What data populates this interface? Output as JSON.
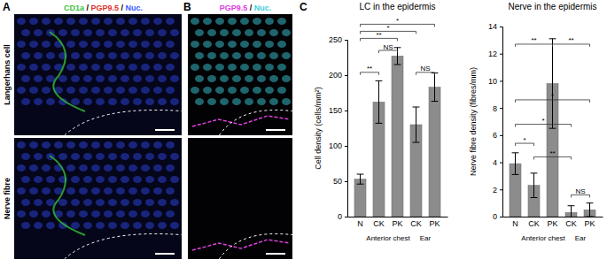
{
  "panels": [
    {
      "label": "A",
      "stains": [
        {
          "text": "CD1a",
          "color": "#3ec23e"
        },
        {
          "text": "PGP9.5",
          "color": "#e0302a"
        },
        {
          "text": "Nuc.",
          "color": "#3b5bff"
        }
      ],
      "separator": " / ",
      "rows": [
        "Langerhans cell",
        "Nerve fibre"
      ]
    },
    {
      "label": "B",
      "stains": [
        {
          "text": "PGP9.5",
          "color": "#e040e0"
        },
        {
          "text": "Nuc.",
          "color": "#3fd0d8"
        }
      ],
      "separator": " / "
    }
  ],
  "chart_label": "C",
  "chart_data": [
    {
      "type": "bar",
      "title": "LC in the epidermis",
      "y_label": "Cell density (cells/mm²)",
      "categories": [
        "N",
        "CK",
        "PK",
        "CK",
        "PK"
      ],
      "groups": [
        {
          "label": "Anterior chest",
          "from": 1,
          "to": 2
        },
        {
          "label": "Ear",
          "from": 3,
          "to": 4
        }
      ],
      "values": [
        53,
        162,
        227,
        130,
        183
      ],
      "errors": [
        7,
        30,
        12,
        25,
        20
      ],
      "color": "#8c8c8c",
      "ylim": [
        0,
        250
      ],
      "yticks": [
        0,
        50,
        100,
        150,
        200,
        250
      ],
      "annotations": [
        {
          "from": 0,
          "to": 4,
          "y": 272,
          "text": "*"
        },
        {
          "from": 0,
          "to": 3,
          "y": 262,
          "text": "*"
        },
        {
          "from": 0,
          "to": 2,
          "y": 252,
          "text": "**"
        },
        {
          "from": 1,
          "to": 2,
          "y": 235,
          "text": "NS"
        },
        {
          "from": 0,
          "to": 1,
          "y": 204,
          "text": "**"
        },
        {
          "from": 3,
          "to": 4,
          "y": 204,
          "text": "NS"
        }
      ]
    },
    {
      "type": "bar",
      "title": "Nerve in the epidermis",
      "y_label": "Nerve fibre density (fibres/mm)",
      "categories": [
        "N",
        "CK",
        "PK",
        "CK",
        "PK"
      ],
      "groups": [
        {
          "label": "Anterior chest",
          "from": 1,
          "to": 2
        },
        {
          "label": "Ear",
          "from": 3,
          "to": 4
        }
      ],
      "values": [
        3.9,
        2.3,
        9.8,
        0.3,
        0.5
      ],
      "errors": [
        0.8,
        0.9,
        3.3,
        0.5,
        0.5
      ],
      "color": "#8c8c8c",
      "ylim": [
        0,
        14
      ],
      "yticks": [
        0,
        2,
        4,
        6,
        8,
        10,
        12,
        14
      ],
      "annotations": [
        {
          "from": 0,
          "to": 2,
          "y": 12.7,
          "text": "**"
        },
        {
          "from": 2,
          "to": 4,
          "y": 12.7,
          "text": "**"
        },
        {
          "from": 0,
          "to": 4,
          "y": 8.6,
          "text": "*"
        },
        {
          "from": 0,
          "to": 3,
          "y": 6.8,
          "text": "*"
        },
        {
          "from": 0,
          "to": 1,
          "y": 5.4,
          "text": "*"
        },
        {
          "from": 1,
          "to": 3,
          "y": 4.4,
          "text": "**"
        },
        {
          "from": 3,
          "to": 4,
          "y": 1.6,
          "text": "NS"
        }
      ]
    }
  ]
}
